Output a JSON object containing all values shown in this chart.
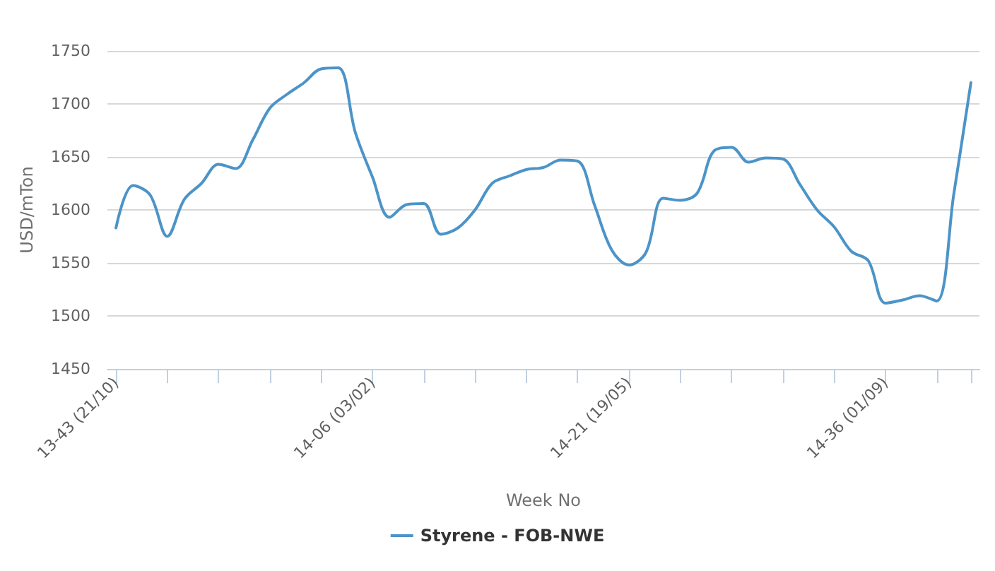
{
  "chart_data": {
    "type": "line",
    "xlabel": "Week No",
    "ylabel": "USD/mTon",
    "categories": [
      "13-43 (21/10)",
      null,
      null,
      null,
      null,
      null,
      null,
      null,
      null,
      null,
      null,
      null,
      null,
      null,
      null,
      "14-06 (03/02)",
      null,
      null,
      null,
      null,
      null,
      null,
      null,
      null,
      null,
      null,
      null,
      null,
      null,
      null,
      "14-21 (19/05)",
      null,
      null,
      null,
      null,
      null,
      null,
      null,
      null,
      null,
      null,
      null,
      null,
      null,
      null,
      "14-36 (01/09)",
      null,
      null,
      null,
      null,
      null
    ],
    "series": [
      {
        "name": "Styrene - FOB-NWE",
        "color": "#4c94c8",
        "values": [
          1583,
          1623,
          1614,
          1575,
          1610,
          1625,
          1643,
          1639,
          1666,
          1696,
          1709,
          1720,
          1733,
          1734,
          1673,
          1631,
          1593,
          1605,
          1606,
          1577,
          1583,
          1600,
          1625,
          1632,
          1638,
          1640,
          1647,
          1646,
          1604,
          1562,
          1548,
          1560,
          1611,
          1609,
          1616,
          1656,
          1659,
          1645,
          1649,
          1648,
          1624,
          1600,
          1584,
          1561,
          1552,
          1512,
          1515,
          1519,
          1514,
          1615,
          1720
        ]
      }
    ],
    "ylim": [
      1450,
      1750
    ],
    "yticks": [
      1450,
      1500,
      1550,
      1600,
      1650,
      1700,
      1750
    ],
    "grid": "y",
    "legend": "bottom",
    "marker": "none",
    "line_style": "solid"
  }
}
